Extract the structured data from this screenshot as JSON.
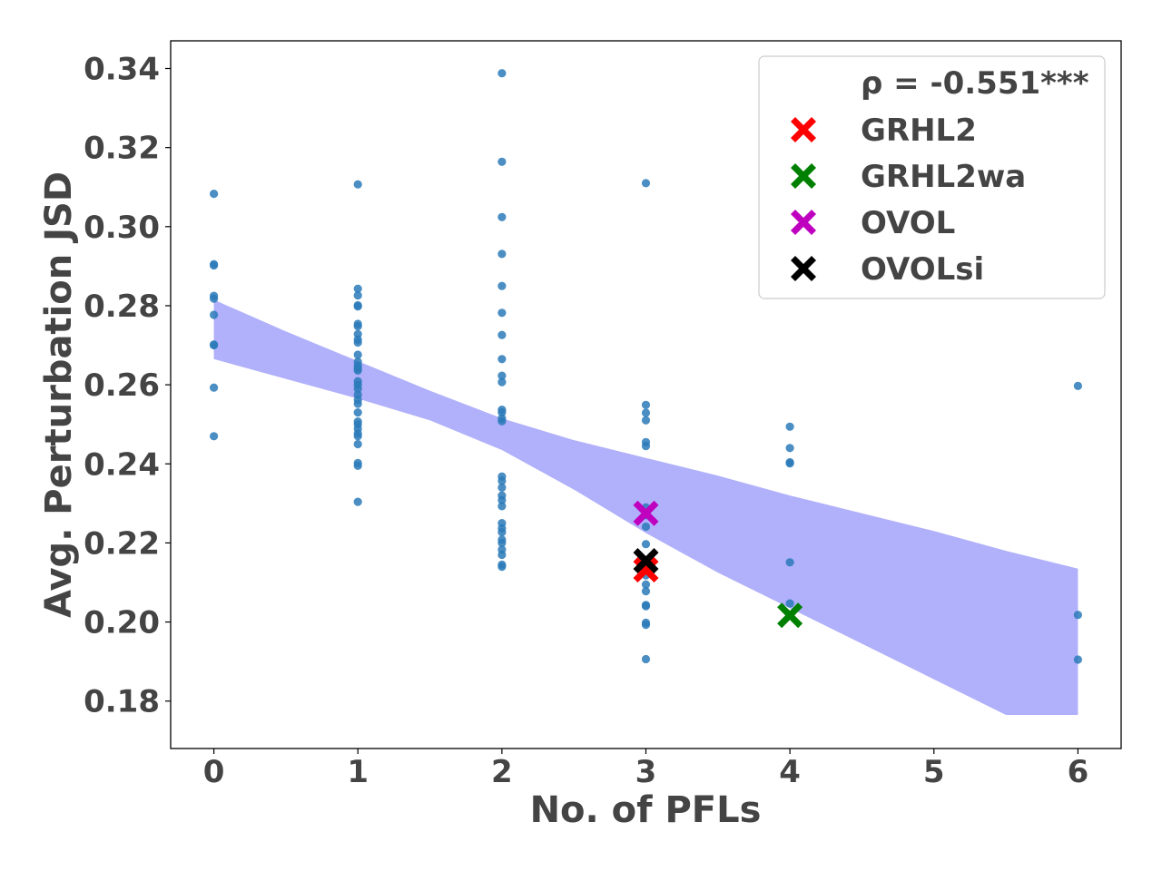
{
  "chart_data": {
    "type": "scatter",
    "xlabel": "No. of PFLs",
    "ylabel": "Avg. Perturbation JSD",
    "xlim": [
      -0.3,
      6.3
    ],
    "ylim": [
      0.168,
      0.347
    ],
    "xticks": [
      0,
      1,
      2,
      3,
      4,
      5,
      6
    ],
    "xtick_labels": [
      "0",
      "1",
      "2",
      "3",
      "4",
      "5",
      "6"
    ],
    "yticks": [
      0.18,
      0.2,
      0.22,
      0.24,
      0.26,
      0.28,
      0.3,
      0.32,
      0.34
    ],
    "ytick_labels": [
      "0.18",
      "0.20",
      "0.22",
      "0.24",
      "0.26",
      "0.28",
      "0.30",
      "0.32",
      "0.34"
    ],
    "grid": false,
    "legend_position": "top-right",
    "annotation": "ρ = -0.551***",
    "point_color": "#2a7ab9",
    "band_color": "#b0b0fb",
    "band": {
      "x": [
        0,
        0.5,
        1,
        1.5,
        2,
        2.5,
        3,
        3.5,
        4,
        4.5,
        5,
        5.5,
        6
      ],
      "upper": [
        0.2815,
        0.2735,
        0.266,
        0.2585,
        0.2515,
        0.246,
        0.2415,
        0.237,
        0.232,
        0.2275,
        0.223,
        0.218,
        0.2135
      ],
      "lower": [
        0.2665,
        0.2615,
        0.2565,
        0.251,
        0.2435,
        0.2335,
        0.2225,
        0.2125,
        0.2035,
        0.1945,
        0.1855,
        0.1765,
        0.1765
      ]
    },
    "points": [
      [
        0,
        0.3083
      ],
      [
        0,
        0.2905
      ],
      [
        0,
        0.2902
      ],
      [
        0,
        0.2825
      ],
      [
        0,
        0.2818
      ],
      [
        0,
        0.2777
      ],
      [
        0,
        0.2702
      ],
      [
        0,
        0.27
      ],
      [
        0,
        0.2593
      ],
      [
        0,
        0.247
      ],
      [
        1,
        0.3107
      ],
      [
        1,
        0.2843
      ],
      [
        1,
        0.2826
      ],
      [
        1,
        0.2801
      ],
      [
        1,
        0.2798
      ],
      [
        1,
        0.2754
      ],
      [
        1,
        0.2748
      ],
      [
        1,
        0.2728
      ],
      [
        1,
        0.2714
      ],
      [
        1,
        0.2707
      ],
      [
        1,
        0.2676
      ],
      [
        1,
        0.2658
      ],
      [
        1,
        0.2648
      ],
      [
        1,
        0.2641
      ],
      [
        1,
        0.2636
      ],
      [
        1,
        0.2609
      ],
      [
        1,
        0.26
      ],
      [
        1,
        0.259
      ],
      [
        1,
        0.2575
      ],
      [
        1,
        0.2562
      ],
      [
        1,
        0.2552
      ],
      [
        1,
        0.253
      ],
      [
        1,
        0.2507
      ],
      [
        1,
        0.25
      ],
      [
        1,
        0.2489
      ],
      [
        1,
        0.2477
      ],
      [
        1,
        0.247
      ],
      [
        1,
        0.245
      ],
      [
        1,
        0.2402
      ],
      [
        1,
        0.2395
      ],
      [
        1,
        0.2304
      ],
      [
        2,
        0.3388
      ],
      [
        2,
        0.3164
      ],
      [
        2,
        0.3024
      ],
      [
        2,
        0.2931
      ],
      [
        2,
        0.285
      ],
      [
        2,
        0.2782
      ],
      [
        2,
        0.2726
      ],
      [
        2,
        0.2665
      ],
      [
        2,
        0.2623
      ],
      [
        2,
        0.2607
      ],
      [
        2,
        0.2537
      ],
      [
        2,
        0.253
      ],
      [
        2,
        0.2515
      ],
      [
        2,
        0.2508
      ],
      [
        2,
        0.2368
      ],
      [
        2,
        0.2357
      ],
      [
        2,
        0.234
      ],
      [
        2,
        0.232
      ],
      [
        2,
        0.2308
      ],
      [
        2,
        0.2293
      ],
      [
        2,
        0.225
      ],
      [
        2,
        0.2237
      ],
      [
        2,
        0.2227
      ],
      [
        2,
        0.2208
      ],
      [
        2,
        0.22
      ],
      [
        2,
        0.2183
      ],
      [
        2,
        0.217
      ],
      [
        2,
        0.2145
      ],
      [
        2,
        0.214
      ],
      [
        3,
        0.311
      ],
      [
        3,
        0.2549
      ],
      [
        3,
        0.2529
      ],
      [
        3,
        0.251
      ],
      [
        3,
        0.2455
      ],
      [
        3,
        0.2445
      ],
      [
        3,
        0.229
      ],
      [
        3,
        0.227
      ],
      [
        3,
        0.2241
      ],
      [
        3,
        0.2197
      ],
      [
        3,
        0.215
      ],
      [
        3,
        0.2118
      ],
      [
        3,
        0.2095
      ],
      [
        3,
        0.2078
      ],
      [
        3,
        0.2043
      ],
      [
        3,
        0.204
      ],
      [
        3,
        0.1998
      ],
      [
        3,
        0.1993
      ],
      [
        3,
        0.1906
      ],
      [
        4,
        0.2494
      ],
      [
        4,
        0.244
      ],
      [
        4,
        0.2404
      ],
      [
        4,
        0.2401
      ],
      [
        4,
        0.2151
      ],
      [
        4,
        0.2047
      ],
      [
        6,
        0.2597
      ],
      [
        6,
        0.2018
      ],
      [
        6,
        0.1905
      ]
    ],
    "series": [
      {
        "name": "GRHL2",
        "color": "#ff0000",
        "marker": "x",
        "x": 3,
        "y": 0.2132
      },
      {
        "name": "GRHL2wa",
        "color": "#008000",
        "marker": "x",
        "x": 4,
        "y": 0.2017
      },
      {
        "name": "OVOL",
        "color": "#bf00bf",
        "marker": "x",
        "x": 3,
        "y": 0.2275
      },
      {
        "name": "OVOLsi",
        "color": "#000000",
        "marker": "x",
        "x": 3,
        "y": 0.2155
      }
    ]
  }
}
